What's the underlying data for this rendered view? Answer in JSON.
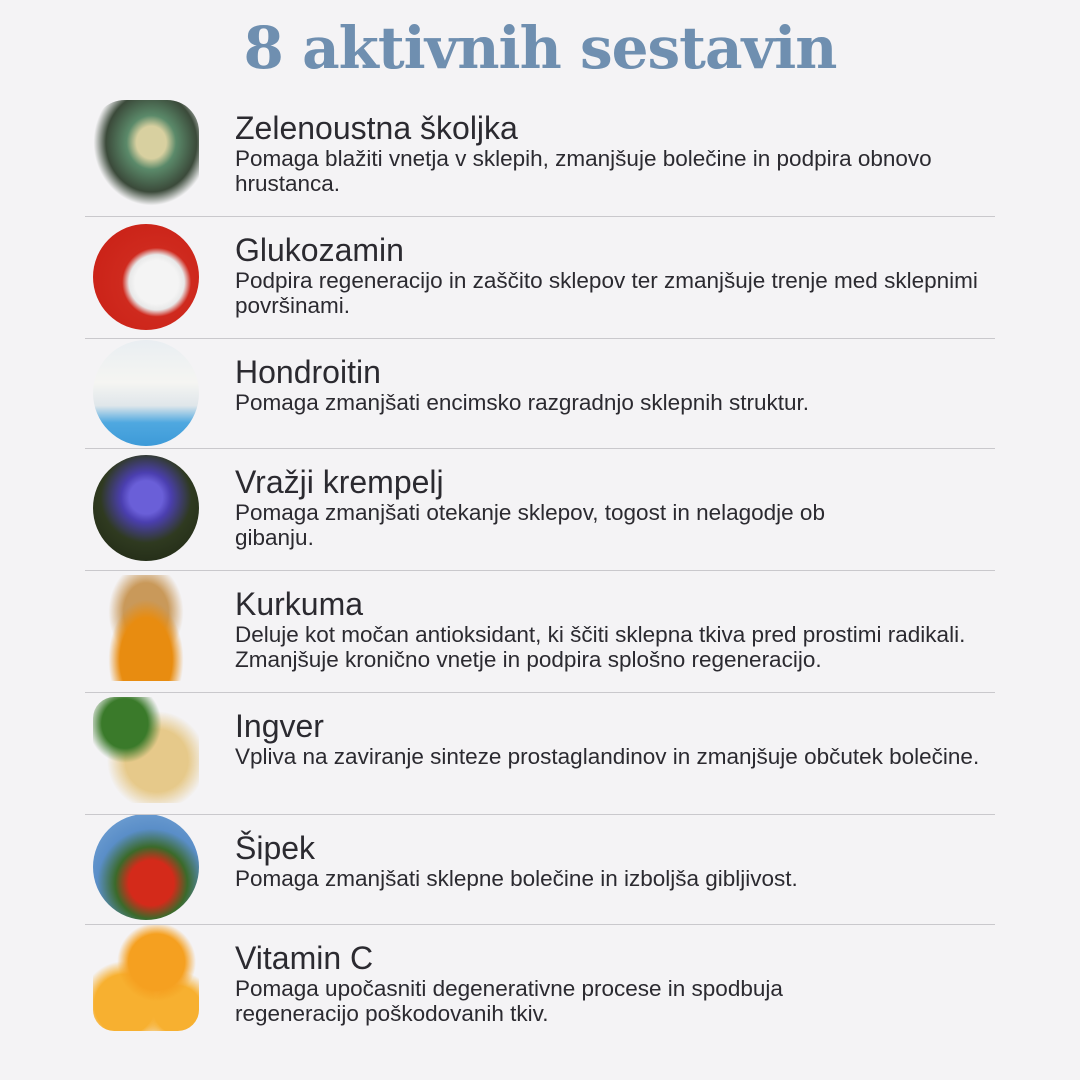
{
  "title": "8 aktivnih sestavin",
  "ingredients": [
    {
      "name": "Zelenoustna školjka",
      "description": "Pomaga blažiti vnetja v sklepih, zmanjšuje bolečine in podpira obnovo hrustanca.",
      "icon": "green-lipped-mussel-image"
    },
    {
      "name": "Glukozamin",
      "description": "Podpira regeneracijo in zaščito sklepov ter zmanjšuje trenje med sklepnimi površinami.",
      "icon": "glucosamine-powder-image"
    },
    {
      "name": "Hondroitin",
      "description": "Pomaga zmanjšati encimsko razgradnjo sklepnih struktur.",
      "icon": "chondroitin-capsule-image"
    },
    {
      "name": "Vražji krempelj",
      "description": "Pomaga zmanjšati otekanje sklepov, togost in nelagodje ob gibanju.",
      "icon": "devils-claw-flower-image"
    },
    {
      "name": "Kurkuma",
      "description": "Deluje kot močan antioksidant, ki ščiti sklepna tkiva pred prostimi radikali. Zmanjšuje kronično vnetje in podpira splošno regeneracijo.",
      "icon": "turmeric-image"
    },
    {
      "name": "Ingver",
      "description": "Vpliva na zaviranje sinteze prostaglandinov in zmanjšuje občutek bolečine.",
      "icon": "ginger-image"
    },
    {
      "name": "Šipek",
      "description": "Pomaga zmanjšati sklepne bolečine in izboljša gibljivost.",
      "icon": "rosehip-image"
    },
    {
      "name": "Vitamin C",
      "description": "Pomaga upočasniti degenerativne procese in spodbuja regeneracijo poškodovanih tkiv.",
      "icon": "orange-image"
    }
  ]
}
